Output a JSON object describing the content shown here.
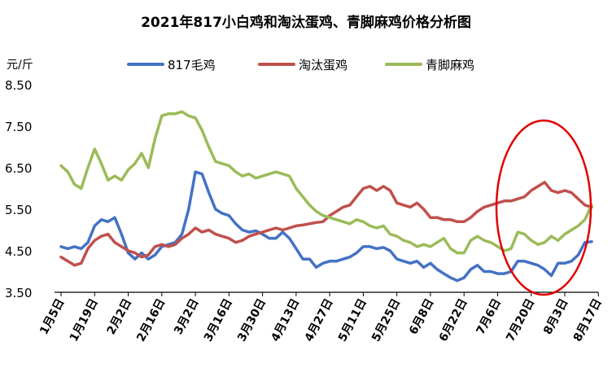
{
  "chart_data": {
    "type": "line",
    "title": "2021年817小白鸡和淘汰蛋鸡、青脚麻鸡价格分析图",
    "ylabel": "元/斤",
    "xlabel": "",
    "ylim": [
      3.5,
      8.5
    ],
    "y_ticks": [
      "8.50",
      "7.50",
      "6.50",
      "5.50",
      "4.50",
      "3.50"
    ],
    "x_tick_labels": [
      "1月5日",
      "1月19日",
      "2月2日",
      "2月16日",
      "3月2日",
      "3月16日",
      "3月30日",
      "4月13日",
      "4月27日",
      "5月11日",
      "5月25日",
      "6月8日",
      "6月22日",
      "7月6日",
      "7月20日",
      "8月3日",
      "8月17日"
    ],
    "legend_position": "top",
    "grid": false,
    "annotation": "red ellipse highlighting late July to mid August",
    "series": [
      {
        "name": "817毛鸡",
        "color": "#4472C4",
        "points": [
          [
            0,
            4.6
          ],
          [
            1,
            4.55
          ],
          [
            2,
            4.6
          ],
          [
            3,
            4.55
          ],
          [
            4,
            4.7
          ],
          [
            5,
            5.1
          ],
          [
            6,
            5.25
          ],
          [
            7,
            5.2
          ],
          [
            8,
            5.3
          ],
          [
            9,
            4.9
          ],
          [
            10,
            4.45
          ],
          [
            11,
            4.3
          ],
          [
            12,
            4.45
          ],
          [
            13,
            4.3
          ],
          [
            14,
            4.4
          ],
          [
            15,
            4.6
          ],
          [
            16,
            4.65
          ],
          [
            17,
            4.7
          ],
          [
            18,
            4.9
          ],
          [
            19,
            5.5
          ],
          [
            20,
            6.4
          ],
          [
            21,
            6.35
          ],
          [
            22,
            5.9
          ],
          [
            23,
            5.5
          ],
          [
            24,
            5.4
          ],
          [
            25,
            5.35
          ],
          [
            26,
            5.15
          ],
          [
            27,
            5.0
          ],
          [
            28,
            4.95
          ],
          [
            29,
            4.98
          ],
          [
            30,
            4.9
          ],
          [
            31,
            4.8
          ],
          [
            32,
            4.8
          ],
          [
            33,
            4.95
          ],
          [
            34,
            4.8
          ],
          [
            35,
            4.55
          ],
          [
            36,
            4.3
          ],
          [
            37,
            4.3
          ],
          [
            38,
            4.1
          ],
          [
            39,
            4.2
          ],
          [
            40,
            4.25
          ],
          [
            41,
            4.25
          ],
          [
            42,
            4.3
          ],
          [
            43,
            4.35
          ],
          [
            44,
            4.45
          ],
          [
            45,
            4.6
          ],
          [
            46,
            4.6
          ],
          [
            47,
            4.55
          ],
          [
            48,
            4.58
          ],
          [
            49,
            4.5
          ],
          [
            50,
            4.3
          ],
          [
            51,
            4.25
          ],
          [
            52,
            4.2
          ],
          [
            53,
            4.25
          ],
          [
            54,
            4.1
          ],
          [
            55,
            4.2
          ],
          [
            56,
            4.05
          ],
          [
            57,
            3.95
          ],
          [
            58,
            3.85
          ],
          [
            59,
            3.78
          ],
          [
            60,
            3.85
          ],
          [
            61,
            4.05
          ],
          [
            62,
            4.15
          ],
          [
            63,
            4.0
          ],
          [
            64,
            4.0
          ],
          [
            65,
            3.95
          ],
          [
            66,
            3.95
          ],
          [
            67,
            4.0
          ],
          [
            68,
            4.25
          ],
          [
            69,
            4.25
          ],
          [
            70,
            4.2
          ],
          [
            71,
            4.15
          ],
          [
            72,
            4.05
          ],
          [
            73,
            3.9
          ],
          [
            74,
            4.2
          ],
          [
            75,
            4.2
          ],
          [
            76,
            4.25
          ],
          [
            77,
            4.4
          ],
          [
            78,
            4.7
          ],
          [
            79,
            4.72
          ]
        ]
      },
      {
        "name": "淘汰蛋鸡",
        "color": "#C0504D",
        "points": [
          [
            0,
            4.35
          ],
          [
            1,
            4.25
          ],
          [
            2,
            4.15
          ],
          [
            3,
            4.2
          ],
          [
            4,
            4.55
          ],
          [
            5,
            4.75
          ],
          [
            6,
            4.85
          ],
          [
            7,
            4.9
          ],
          [
            8,
            4.7
          ],
          [
            9,
            4.6
          ],
          [
            10,
            4.5
          ],
          [
            11,
            4.45
          ],
          [
            12,
            4.35
          ],
          [
            13,
            4.4
          ],
          [
            14,
            4.6
          ],
          [
            15,
            4.65
          ],
          [
            16,
            4.6
          ],
          [
            17,
            4.65
          ],
          [
            18,
            4.8
          ],
          [
            19,
            4.9
          ],
          [
            20,
            5.05
          ],
          [
            21,
            4.95
          ],
          [
            22,
            5.0
          ],
          [
            23,
            4.9
          ],
          [
            24,
            4.85
          ],
          [
            25,
            4.8
          ],
          [
            26,
            4.7
          ],
          [
            27,
            4.75
          ],
          [
            28,
            4.85
          ],
          [
            29,
            4.9
          ],
          [
            30,
            4.95
          ],
          [
            31,
            5.0
          ],
          [
            32,
            5.05
          ],
          [
            33,
            5.0
          ],
          [
            34,
            5.05
          ],
          [
            35,
            5.1
          ],
          [
            36,
            5.12
          ],
          [
            37,
            5.15
          ],
          [
            38,
            5.18
          ],
          [
            39,
            5.2
          ],
          [
            40,
            5.35
          ],
          [
            41,
            5.45
          ],
          [
            42,
            5.55
          ],
          [
            43,
            5.6
          ],
          [
            44,
            5.8
          ],
          [
            45,
            6.0
          ],
          [
            46,
            6.05
          ],
          [
            47,
            5.95
          ],
          [
            48,
            6.05
          ],
          [
            49,
            5.95
          ],
          [
            50,
            5.65
          ],
          [
            51,
            5.6
          ],
          [
            52,
            5.55
          ],
          [
            53,
            5.65
          ],
          [
            54,
            5.5
          ],
          [
            55,
            5.3
          ],
          [
            56,
            5.3
          ],
          [
            57,
            5.25
          ],
          [
            58,
            5.25
          ],
          [
            59,
            5.2
          ],
          [
            60,
            5.2
          ],
          [
            61,
            5.3
          ],
          [
            62,
            5.45
          ],
          [
            63,
            5.55
          ],
          [
            64,
            5.6
          ],
          [
            65,
            5.65
          ],
          [
            66,
            5.7
          ],
          [
            67,
            5.7
          ],
          [
            68,
            5.75
          ],
          [
            69,
            5.8
          ],
          [
            70,
            5.95
          ],
          [
            71,
            6.05
          ],
          [
            72,
            6.15
          ],
          [
            73,
            5.95
          ],
          [
            74,
            5.9
          ],
          [
            75,
            5.95
          ],
          [
            76,
            5.9
          ],
          [
            77,
            5.75
          ],
          [
            78,
            5.6
          ],
          [
            79,
            5.55
          ]
        ]
      },
      {
        "name": "青脚麻鸡",
        "color": "#9BBB59",
        "points": [
          [
            0,
            6.55
          ],
          [
            1,
            6.4
          ],
          [
            2,
            6.1
          ],
          [
            3,
            6.0
          ],
          [
            4,
            6.5
          ],
          [
            5,
            6.95
          ],
          [
            6,
            6.6
          ],
          [
            7,
            6.2
          ],
          [
            8,
            6.3
          ],
          [
            9,
            6.2
          ],
          [
            10,
            6.45
          ],
          [
            11,
            6.6
          ],
          [
            12,
            6.85
          ],
          [
            13,
            6.5
          ],
          [
            14,
            7.2
          ],
          [
            15,
            7.75
          ],
          [
            16,
            7.8
          ],
          [
            17,
            7.8
          ],
          [
            18,
            7.85
          ],
          [
            19,
            7.75
          ],
          [
            20,
            7.7
          ],
          [
            21,
            7.4
          ],
          [
            22,
            7.0
          ],
          [
            23,
            6.65
          ],
          [
            24,
            6.6
          ],
          [
            25,
            6.55
          ],
          [
            26,
            6.4
          ],
          [
            27,
            6.3
          ],
          [
            28,
            6.35
          ],
          [
            29,
            6.25
          ],
          [
            30,
            6.3
          ],
          [
            31,
            6.35
          ],
          [
            32,
            6.4
          ],
          [
            33,
            6.35
          ],
          [
            34,
            6.3
          ],
          [
            35,
            6.0
          ],
          [
            36,
            5.8
          ],
          [
            37,
            5.6
          ],
          [
            38,
            5.45
          ],
          [
            39,
            5.35
          ],
          [
            40,
            5.3
          ],
          [
            41,
            5.25
          ],
          [
            42,
            5.2
          ],
          [
            43,
            5.15
          ],
          [
            44,
            5.25
          ],
          [
            45,
            5.2
          ],
          [
            46,
            5.1
          ],
          [
            47,
            5.05
          ],
          [
            48,
            5.1
          ],
          [
            49,
            4.9
          ],
          [
            50,
            4.85
          ],
          [
            51,
            4.75
          ],
          [
            52,
            4.7
          ],
          [
            53,
            4.6
          ],
          [
            54,
            4.65
          ],
          [
            55,
            4.6
          ],
          [
            56,
            4.7
          ],
          [
            57,
            4.8
          ],
          [
            58,
            4.55
          ],
          [
            59,
            4.45
          ],
          [
            60,
            4.45
          ],
          [
            61,
            4.75
          ],
          [
            62,
            4.85
          ],
          [
            63,
            4.75
          ],
          [
            64,
            4.7
          ],
          [
            65,
            4.6
          ],
          [
            66,
            4.5
          ],
          [
            67,
            4.55
          ],
          [
            68,
            4.95
          ],
          [
            69,
            4.9
          ],
          [
            70,
            4.75
          ],
          [
            71,
            4.65
          ],
          [
            72,
            4.7
          ],
          [
            73,
            4.85
          ],
          [
            74,
            4.75
          ],
          [
            75,
            4.9
          ],
          [
            76,
            5.0
          ],
          [
            77,
            5.1
          ],
          [
            78,
            5.25
          ],
          [
            79,
            5.6
          ]
        ]
      }
    ]
  }
}
